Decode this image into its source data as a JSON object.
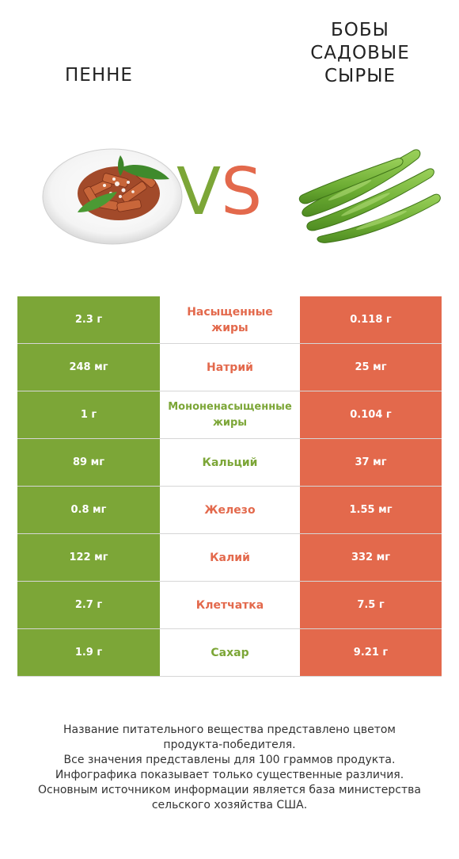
{
  "products": {
    "left": {
      "name": "ПЕННЕ",
      "color": "#7ca637",
      "image_icon": "penne-pasta-plate-image"
    },
    "right": {
      "name_lines": [
        "БОБЫ",
        "САДОВЫЕ",
        "СЫРЫЕ"
      ],
      "color": "#e3694c",
      "image_icon": "fava-beans-pods-image"
    }
  },
  "vs": {
    "v": "V",
    "s": "S"
  },
  "rows": [
    {
      "left": "2.3 г",
      "label_lines": [
        "Насыщенные",
        "жиры"
      ],
      "right": "0.118 г",
      "winner": "right"
    },
    {
      "left": "248 мг",
      "label_lines": [
        "Натрий"
      ],
      "right": "25 мг",
      "winner": "right"
    },
    {
      "left": "1 г",
      "label_lines": [
        "Мононенасыщенные",
        "жиры"
      ],
      "right": "0.104 г",
      "winner": "left"
    },
    {
      "left": "89 мг",
      "label_lines": [
        "Кальций"
      ],
      "right": "37 мг",
      "winner": "left"
    },
    {
      "left": "0.8 мг",
      "label_lines": [
        "Железо"
      ],
      "right": "1.55 мг",
      "winner": "right"
    },
    {
      "left": "122 мг",
      "label_lines": [
        "Калий"
      ],
      "right": "332 мг",
      "winner": "right"
    },
    {
      "left": "2.7 г",
      "label_lines": [
        "Клетчатка"
      ],
      "right": "7.5 г",
      "winner": "right"
    },
    {
      "left": "1.9 г",
      "label_lines": [
        "Сахар"
      ],
      "right": "9.21 г",
      "winner": "left"
    }
  ],
  "footer": {
    "lines": [
      "Название питательного вещества представлено цветом",
      "продукта-победителя.",
      "Все значения представлены для 100 граммов продукта.",
      "Инфографика показывает только существенные различия.",
      "Основным источником информации является база министерства",
      "сельского хозяйства США."
    ]
  }
}
